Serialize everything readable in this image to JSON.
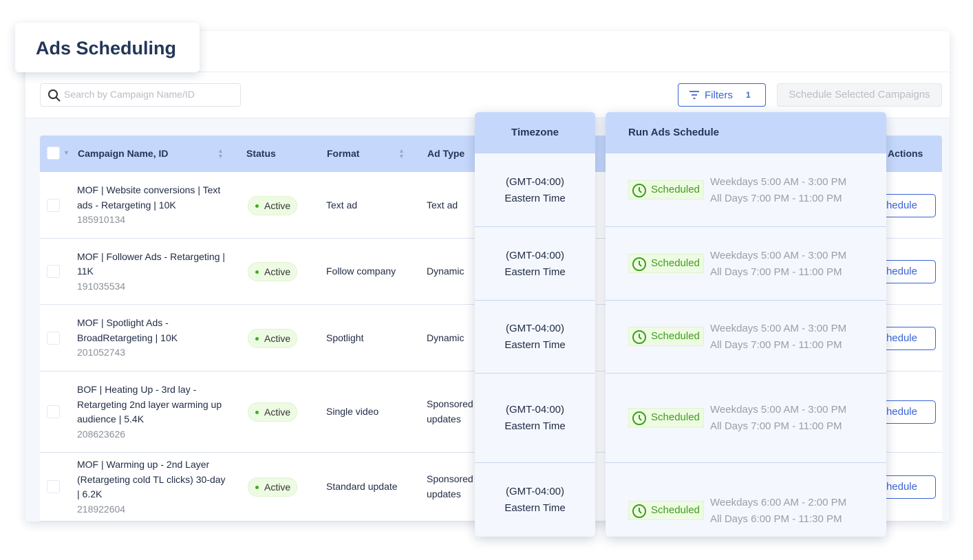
{
  "title": "Ads Scheduling",
  "search": {
    "placeholder": "Search by Campaign Name/ID"
  },
  "filters": {
    "label": "Filters",
    "count": "1"
  },
  "schedule_selected_label": "Schedule Selected Campaigns",
  "columns": {
    "name": "Campaign Name, ID",
    "status": "Status",
    "format": "Format",
    "ad_type": "Ad Type",
    "actions": "Actions",
    "timezone": "Timezone",
    "run_schedule": "Run Ads Schedule"
  },
  "colors": {
    "accent": "#3b63d6",
    "header": "#c5d8fb",
    "active_green": "#3fae1f"
  },
  "rows": [
    {
      "name": "MOF | Website conversions | Text ads - Retargeting | 10K",
      "id": "185910134",
      "status": "Active",
      "format": "Text ad",
      "ad_type": "Text ad",
      "action": "Schedule",
      "tz1": "(GMT-04:00)",
      "tz2": "Eastern Time",
      "sched": "Scheduled",
      "t1": "Weekdays 5:00 AM - 3:00 PM",
      "t2": "All Days 7:00 PM - 11:00 PM"
    },
    {
      "name": "MOF | Follower Ads - Retargeting | 11K",
      "id": "191035534",
      "status": "Active",
      "format": "Follow company",
      "ad_type": "Dynamic",
      "action": "Schedule",
      "tz1": "(GMT-04:00)",
      "tz2": "Eastern Time",
      "sched": "Scheduled",
      "t1": "Weekdays 5:00 AM - 3:00 PM",
      "t2": "All Days 7:00 PM - 11:00 PM"
    },
    {
      "name": "MOF | Spotlight Ads - BroadRetargeting | 10K",
      "id": "201052743",
      "status": "Active",
      "format": "Spotlight",
      "ad_type": "Dynamic",
      "action": "Schedule",
      "tz1": "(GMT-04:00)",
      "tz2": "Eastern Time",
      "sched": "Scheduled",
      "t1": "Weekdays 5:00 AM - 3:00 PM",
      "t2": "All Days 7:00 PM - 11:00 PM"
    },
    {
      "name": "BOF | Heating Up - 3rd lay - Retargeting 2nd layer warming up audience | 5.4K",
      "id": "208623626",
      "status": "Active",
      "format": "Single video",
      "ad_type": "Sponsored updates",
      "action": "Schedule",
      "tz1": "(GMT-04:00)",
      "tz2": "Eastern Time",
      "sched": "Scheduled",
      "t1": "Weekdays 5:00 AM - 3:00 PM",
      "t2": "All Days 7:00 PM - 11:00 PM"
    },
    {
      "name": "MOF | Warming up - 2nd Layer (Retargeting cold TL clicks) 30-day | 6.2K",
      "id": "218922604",
      "status": "Active",
      "format": "Standard update",
      "ad_type": "Sponsored updates",
      "action": "Schedule",
      "tz1": "(GMT-04:00)",
      "tz2": "Eastern Time",
      "sched": "Scheduled",
      "t1": "Weekdays 6:00 AM - 2:00 PM",
      "t2": "All Days 6:00 PM - 11:30 PM"
    }
  ]
}
